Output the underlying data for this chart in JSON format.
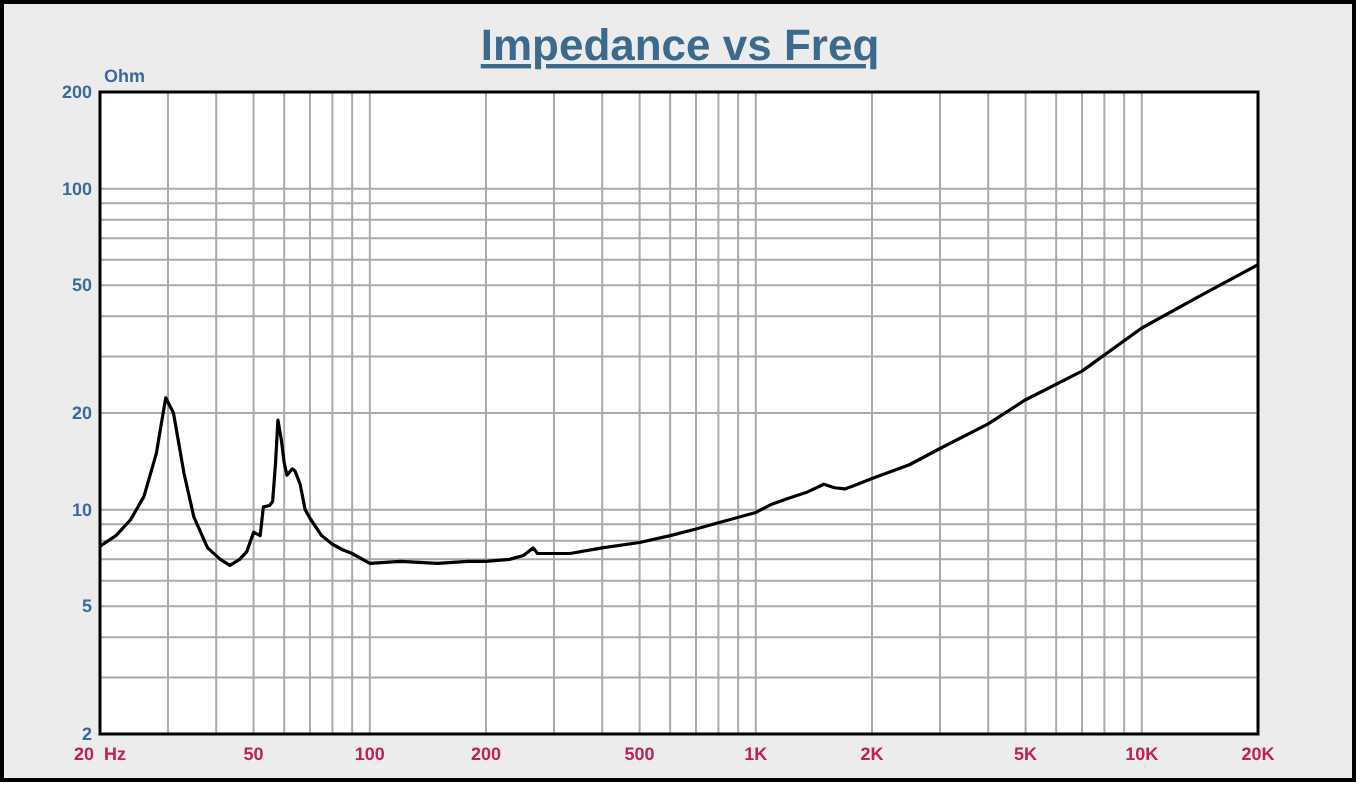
{
  "chart_data": {
    "type": "line",
    "title": "Impedance vs Freq",
    "ylabel": "Ohm",
    "log": "xy",
    "grid": true,
    "marker": "none",
    "line_style": "solid",
    "xlim": [
      20,
      20000
    ],
    "ylim": [
      2,
      200
    ],
    "xticks": [
      {
        "value": 20,
        "label": "20  Hz"
      },
      {
        "value": 30,
        "label": null
      },
      {
        "value": 40,
        "label": null
      },
      50,
      {
        "value": 60,
        "label": null
      },
      {
        "value": 70,
        "label": null
      },
      {
        "value": 80,
        "label": null
      },
      {
        "value": 90,
        "label": null
      },
      100,
      200,
      {
        "value": 300,
        "label": null
      },
      {
        "value": 400,
        "label": null
      },
      500,
      {
        "value": 600,
        "label": null
      },
      {
        "value": 700,
        "label": null
      },
      {
        "value": 800,
        "label": null
      },
      {
        "value": 900,
        "label": null
      },
      {
        "value": 1000,
        "label": "1K"
      },
      {
        "value": 2000,
        "label": "2K"
      },
      {
        "value": 3000,
        "label": null
      },
      {
        "value": 4000,
        "label": null
      },
      {
        "value": 5000,
        "label": "5K"
      },
      {
        "value": 6000,
        "label": null
      },
      {
        "value": 7000,
        "label": null
      },
      {
        "value": 8000,
        "label": null
      },
      {
        "value": 9000,
        "label": null
      },
      {
        "value": 10000,
        "label": "10K"
      },
      {
        "value": 20000,
        "label": "20K"
      }
    ],
    "yticks": [
      2,
      {
        "value": 3,
        "label": null
      },
      {
        "value": 4,
        "label": null
      },
      5,
      {
        "value": 6,
        "label": null
      },
      {
        "value": 7,
        "label": null
      },
      {
        "value": 8,
        "label": null
      },
      {
        "value": 9,
        "label": null
      },
      10,
      20,
      {
        "value": 30,
        "label": null
      },
      {
        "value": 40,
        "label": null
      },
      50,
      {
        "value": 60,
        "label": null
      },
      {
        "value": 70,
        "label": null
      },
      {
        "value": 80,
        "label": null
      },
      {
        "value": 90,
        "label": null
      },
      100,
      200
    ],
    "series": [
      {
        "color": "#000000",
        "x": [
          20,
          22,
          24,
          26,
          28,
          29.6,
          31,
          33,
          35,
          38,
          41,
          43.4,
          46,
          48,
          50,
          52,
          53,
          55,
          56,
          57,
          57.8,
          59,
          60,
          61,
          63,
          64,
          66,
          68,
          70,
          75,
          80,
          85,
          90,
          100,
          120,
          150,
          180,
          200,
          230,
          250,
          265,
          272,
          290,
          330,
          400,
          500,
          600,
          700,
          800,
          1000,
          1100,
          1200,
          1350,
          1500,
          1600,
          1700,
          1800,
          2000,
          2500,
          3000,
          4000,
          5000,
          7000,
          10000,
          14000,
          20000
        ],
        "values": [
          7.7,
          8.3,
          9.3,
          11,
          15,
          22.3,
          20,
          13,
          9.5,
          7.6,
          7,
          6.7,
          7,
          7.4,
          8.5,
          8.3,
          10.2,
          10.3,
          10.6,
          14,
          19,
          16.5,
          14,
          12.8,
          13.4,
          13.2,
          12,
          10,
          9.4,
          8.3,
          7.8,
          7.5,
          7.3,
          6.8,
          6.9,
          6.8,
          6.9,
          6.9,
          7,
          7.2,
          7.6,
          7.3,
          7.3,
          7.3,
          7.6,
          7.9,
          8.3,
          8.7,
          9.1,
          9.8,
          10.4,
          10.8,
          11.3,
          12,
          11.7,
          11.6,
          11.9,
          12.5,
          13.8,
          15.5,
          18.5,
          22,
          27,
          36.8,
          46,
          58
        ]
      }
    ]
  }
}
